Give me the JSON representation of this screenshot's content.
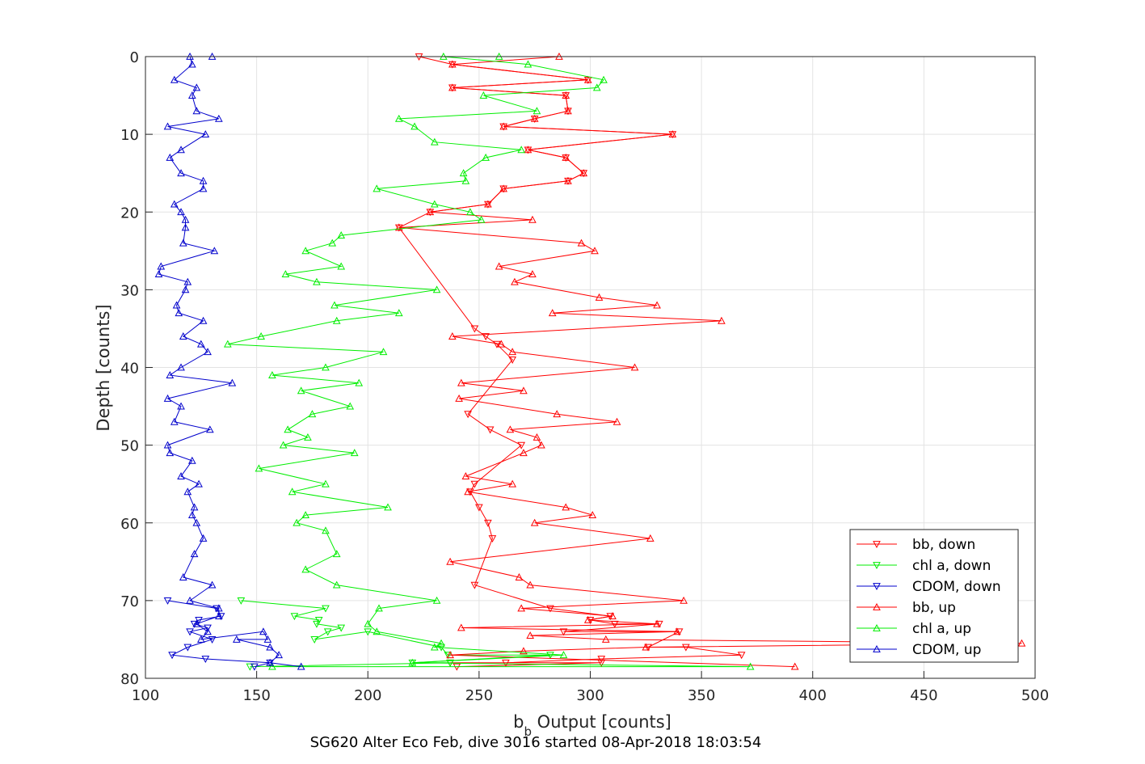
{
  "caption": "SG620 Alter Eco Feb, dive 3016 started 08-Apr-2018 18:03:54",
  "chart_data": {
    "type": "line",
    "xlabel_main": "b",
    "xlabel_sub": "b",
    "xlabel_rest": " Output [counts]",
    "ylabel": "Depth [counts]",
    "xlim": [
      100,
      500
    ],
    "ylim": [
      0,
      80
    ],
    "y_reversed": true,
    "xticks": [
      100,
      150,
      200,
      250,
      300,
      350,
      400,
      450,
      500
    ],
    "yticks": [
      0,
      10,
      20,
      30,
      40,
      50,
      60,
      70,
      80
    ],
    "grid": true,
    "legend_position": "bottom-right",
    "series": [
      {
        "name": "bb, down",
        "color": "#ff0000",
        "marker": "triangle-down",
        "points": [
          [
            223,
            0
          ],
          [
            238,
            1
          ],
          [
            299,
            3
          ],
          [
            238,
            4
          ],
          [
            289,
            5
          ],
          [
            290,
            7
          ],
          [
            275,
            8
          ],
          [
            261,
            9
          ],
          [
            337,
            10
          ],
          [
            272,
            12
          ],
          [
            289,
            13
          ],
          [
            297,
            15
          ],
          [
            290,
            16
          ],
          [
            261,
            17
          ],
          [
            254,
            19
          ],
          [
            228,
            20
          ],
          [
            214,
            22
          ],
          [
            248,
            35
          ],
          [
            253,
            36
          ],
          [
            258,
            37
          ],
          [
            265,
            39
          ],
          [
            245,
            46
          ],
          [
            255,
            48
          ],
          [
            269,
            50
          ],
          [
            248,
            55
          ],
          [
            246,
            56
          ],
          [
            250,
            58
          ],
          [
            254,
            60
          ],
          [
            256,
            62
          ],
          [
            248,
            68
          ],
          [
            282,
            71
          ],
          [
            309,
            72
          ],
          [
            300,
            72.5
          ],
          [
            311,
            73
          ],
          [
            331,
            73
          ],
          [
            288,
            74
          ],
          [
            340,
            74
          ],
          [
            326,
            76
          ],
          [
            343,
            76
          ],
          [
            368,
            77
          ],
          [
            305,
            77.5
          ],
          [
            262,
            78
          ],
          [
            237,
            78
          ],
          [
            305,
            78
          ],
          [
            240,
            78.5
          ]
        ]
      },
      {
        "name": "chl a, down",
        "color": "#00ee00",
        "marker": "triangle-down",
        "points": [
          [
            143,
            70
          ],
          [
            181,
            71
          ],
          [
            167,
            72
          ],
          [
            178,
            72.5
          ],
          [
            177,
            73
          ],
          [
            188,
            73.5
          ],
          [
            182,
            74
          ],
          [
            176,
            75
          ],
          [
            200,
            74
          ],
          [
            233,
            76
          ],
          [
            236,
            77
          ],
          [
            282,
            77
          ],
          [
            220,
            78
          ],
          [
            237,
            78
          ],
          [
            147,
            78.5
          ]
        ]
      },
      {
        "name": "CDOM, down",
        "color": "#0000cc",
        "marker": "triangle-down",
        "points": [
          [
            110,
            70
          ],
          [
            132,
            71
          ],
          [
            134,
            72
          ],
          [
            124,
            72.5
          ],
          [
            122,
            73
          ],
          [
            128,
            73.5
          ],
          [
            120,
            74
          ],
          [
            130,
            75
          ],
          [
            119,
            76
          ],
          [
            112,
            77
          ],
          [
            127,
            77.5
          ],
          [
            156,
            78
          ],
          [
            149,
            78.5
          ]
        ]
      },
      {
        "name": "bb, up",
        "color": "#ff0000",
        "marker": "triangle-up",
        "points": [
          [
            286,
            0
          ],
          [
            238,
            1
          ],
          [
            299,
            3
          ],
          [
            238,
            4
          ],
          [
            289,
            5
          ],
          [
            290,
            7
          ],
          [
            275,
            8
          ],
          [
            261,
            9
          ],
          [
            337,
            10
          ],
          [
            272,
            12
          ],
          [
            289,
            13
          ],
          [
            297,
            15
          ],
          [
            290,
            16
          ],
          [
            261,
            17
          ],
          [
            254,
            19
          ],
          [
            228,
            20
          ],
          [
            274,
            21
          ],
          [
            214,
            22
          ],
          [
            296,
            24
          ],
          [
            302,
            25
          ],
          [
            259,
            27
          ],
          [
            274,
            28
          ],
          [
            266,
            29
          ],
          [
            304,
            31
          ],
          [
            330,
            32
          ],
          [
            283,
            33
          ],
          [
            359,
            34
          ],
          [
            238,
            36
          ],
          [
            260,
            37
          ],
          [
            265,
            38
          ],
          [
            320,
            40
          ],
          [
            242,
            42
          ],
          [
            270,
            43
          ],
          [
            241,
            44
          ],
          [
            285,
            46
          ],
          [
            312,
            47
          ],
          [
            264,
            48
          ],
          [
            276,
            49
          ],
          [
            278,
            50
          ],
          [
            270,
            51
          ],
          [
            244,
            54
          ],
          [
            265,
            55
          ],
          [
            245,
            56
          ],
          [
            289,
            58
          ],
          [
            301,
            59
          ],
          [
            275,
            60
          ],
          [
            327,
            62
          ],
          [
            237,
            65
          ],
          [
            268,
            67
          ],
          [
            273,
            68
          ],
          [
            342,
            70
          ],
          [
            269,
            71
          ],
          [
            310,
            72
          ],
          [
            299,
            72.5
          ],
          [
            330,
            73
          ],
          [
            242,
            73.5
          ],
          [
            339,
            74
          ],
          [
            273,
            74.5
          ],
          [
            307,
            75
          ],
          [
            494,
            75.5
          ],
          [
            325,
            76
          ],
          [
            270,
            76.5
          ],
          [
            237,
            77
          ],
          [
            392,
            78.5
          ]
        ]
      },
      {
        "name": "chl a, up",
        "color": "#00ee00",
        "marker": "triangle-up",
        "points": [
          [
            259,
            0
          ],
          [
            234,
            0
          ],
          [
            272,
            1
          ],
          [
            306,
            3
          ],
          [
            303,
            4
          ],
          [
            252,
            5
          ],
          [
            276,
            7
          ],
          [
            214,
            8
          ],
          [
            221,
            9
          ],
          [
            230,
            11
          ],
          [
            269,
            12
          ],
          [
            253,
            13
          ],
          [
            243,
            15
          ],
          [
            244,
            16
          ],
          [
            204,
            17
          ],
          [
            230,
            19
          ],
          [
            246,
            20
          ],
          [
            251,
            21
          ],
          [
            188,
            23
          ],
          [
            184,
            24
          ],
          [
            172,
            25
          ],
          [
            188,
            27
          ],
          [
            163,
            28
          ],
          [
            177,
            29
          ],
          [
            231,
            30
          ],
          [
            185,
            32
          ],
          [
            214,
            33
          ],
          [
            186,
            34
          ],
          [
            152,
            36
          ],
          [
            137,
            37
          ],
          [
            207,
            38
          ],
          [
            181,
            40
          ],
          [
            157,
            41
          ],
          [
            196,
            42
          ],
          [
            170,
            43
          ],
          [
            192,
            45
          ],
          [
            175,
            46
          ],
          [
            164,
            48
          ],
          [
            173,
            49
          ],
          [
            162,
            50
          ],
          [
            194,
            51
          ],
          [
            151,
            53
          ],
          [
            181,
            55
          ],
          [
            166,
            56
          ],
          [
            209,
            58
          ],
          [
            172,
            59
          ],
          [
            168,
            60
          ],
          [
            181,
            61
          ],
          [
            186,
            64
          ],
          [
            172,
            66
          ],
          [
            186,
            68
          ],
          [
            231,
            70
          ],
          [
            205,
            71
          ],
          [
            200,
            73
          ],
          [
            204,
            74
          ],
          [
            233,
            75.5
          ],
          [
            230,
            76
          ],
          [
            288,
            77
          ],
          [
            220,
            78
          ],
          [
            372,
            78.5
          ],
          [
            157,
            78.5
          ]
        ]
      },
      {
        "name": "CDOM, up",
        "color": "#0000cc",
        "marker": "triangle-up",
        "points": [
          [
            130,
            0
          ],
          [
            120,
            0
          ],
          [
            121,
            1
          ],
          [
            113,
            3
          ],
          [
            123,
            4
          ],
          [
            121,
            5
          ],
          [
            123,
            7
          ],
          [
            133,
            8
          ],
          [
            110,
            9
          ],
          [
            127,
            10
          ],
          [
            116,
            12
          ],
          [
            111,
            13
          ],
          [
            116,
            15
          ],
          [
            126,
            16
          ],
          [
            126,
            17
          ],
          [
            113,
            19
          ],
          [
            116,
            20
          ],
          [
            118,
            21
          ],
          [
            118,
            22
          ],
          [
            117,
            24
          ],
          [
            131,
            25
          ],
          [
            107,
            27
          ],
          [
            106,
            28
          ],
          [
            119,
            29
          ],
          [
            118,
            30
          ],
          [
            114,
            32
          ],
          [
            115,
            33
          ],
          [
            126,
            34
          ],
          [
            117,
            36
          ],
          [
            125,
            37
          ],
          [
            128,
            38
          ],
          [
            116,
            40
          ],
          [
            111,
            41
          ],
          [
            139,
            42
          ],
          [
            110,
            44
          ],
          [
            116,
            45
          ],
          [
            113,
            47
          ],
          [
            129,
            48
          ],
          [
            110,
            50
          ],
          [
            111,
            51
          ],
          [
            121,
            52
          ],
          [
            116,
            54
          ],
          [
            124,
            55
          ],
          [
            119,
            56
          ],
          [
            122,
            58
          ],
          [
            121,
            59
          ],
          [
            123,
            60
          ],
          [
            126,
            62
          ],
          [
            122,
            64
          ],
          [
            117,
            67
          ],
          [
            130,
            68
          ],
          [
            120,
            70
          ],
          [
            133,
            71
          ],
          [
            133,
            72
          ],
          [
            123,
            73
          ],
          [
            128,
            74
          ],
          [
            125,
            75
          ],
          [
            153,
            74
          ],
          [
            155,
            75
          ],
          [
            141,
            75
          ],
          [
            156,
            76
          ],
          [
            160,
            77
          ],
          [
            156,
            78
          ],
          [
            170,
            78.5
          ]
        ]
      }
    ]
  }
}
